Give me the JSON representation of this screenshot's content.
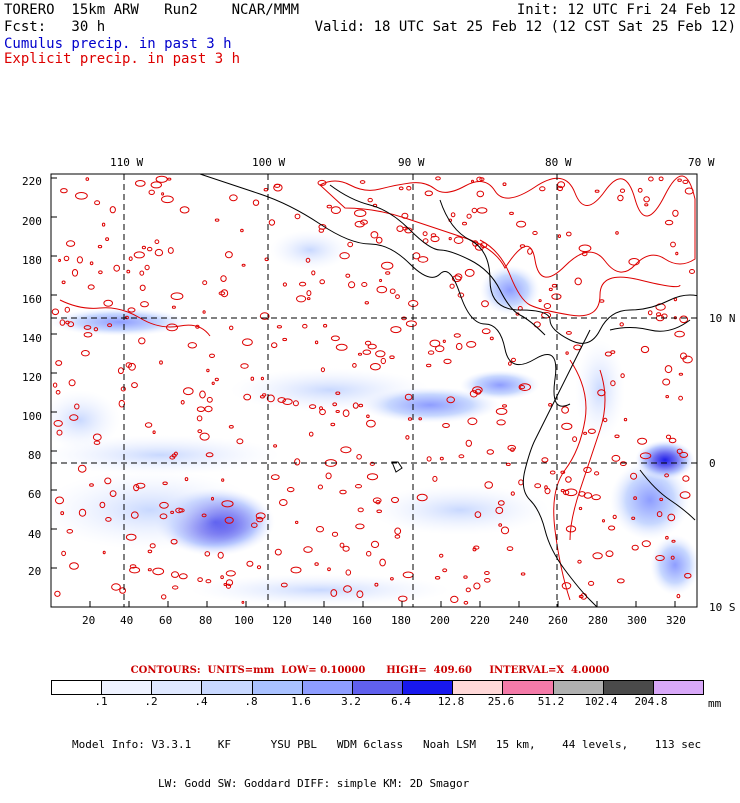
{
  "header": {
    "model": "TORERO  15km ARW   Run2    NCAR/MMM",
    "forecast": "Fcst:   30 h",
    "init": "Init: 12 UTC Fri 24 Feb 12",
    "valid": "Valid: 18 UTC Sat 25 Feb 12 (12 CST Sat 25 Feb 12)",
    "legend_cumulus": "Cumulus precip. in past 3 h",
    "legend_explicit": "Explicit precip. in past 3 h",
    "cumulus_color": "#0000cc",
    "explicit_color": "#dd0000"
  },
  "map": {
    "top_lon_labels": [
      "110 W",
      "100 W",
      "90 W",
      "80 W",
      "70 W"
    ],
    "right_lat_labels": [
      "10 N",
      "0",
      "10 S"
    ],
    "left_ticks": [
      "20",
      "40",
      "60",
      "80",
      "100",
      "120",
      "140",
      "160",
      "180",
      "200",
      "220"
    ],
    "bottom_ticks": [
      "20",
      "40",
      "60",
      "80",
      "100",
      "120",
      "140",
      "160",
      "180",
      "200",
      "220",
      "240",
      "260",
      "280",
      "300",
      "320"
    ]
  },
  "contour_info": "CONTOURS:  UNITS=mm  LOW= 0.10000      HIGH=  409.60     INTERVAL=X  4.0000",
  "colorbar": {
    "labels": [
      ".1",
      ".2",
      ".4",
      ".8",
      "1.6",
      "3.2",
      "6.4",
      "12.8",
      "25.6",
      "51.2",
      "102.4",
      "204.8"
    ],
    "unit": "mm",
    "colors": [
      "#ffffff",
      "#eef2ff",
      "#dfe8ff",
      "#c8d8ff",
      "#a9c1ff",
      "#8e9dff",
      "#6060ee",
      "#1818ee",
      "#ffd8d8",
      "#f47aa8",
      "#b0b0b0",
      "#4a4a4a",
      "#d8a8f8"
    ]
  },
  "model_info": {
    "line1": "Model Info: V3.3.1    KF      YSU PBL   WDM 6class   Noah LSM   15 km,    44 levels,    113 sec",
    "line2": "LW: Godd SW: Goddard DIFF: simple KM: 2D Smagor"
  }
}
